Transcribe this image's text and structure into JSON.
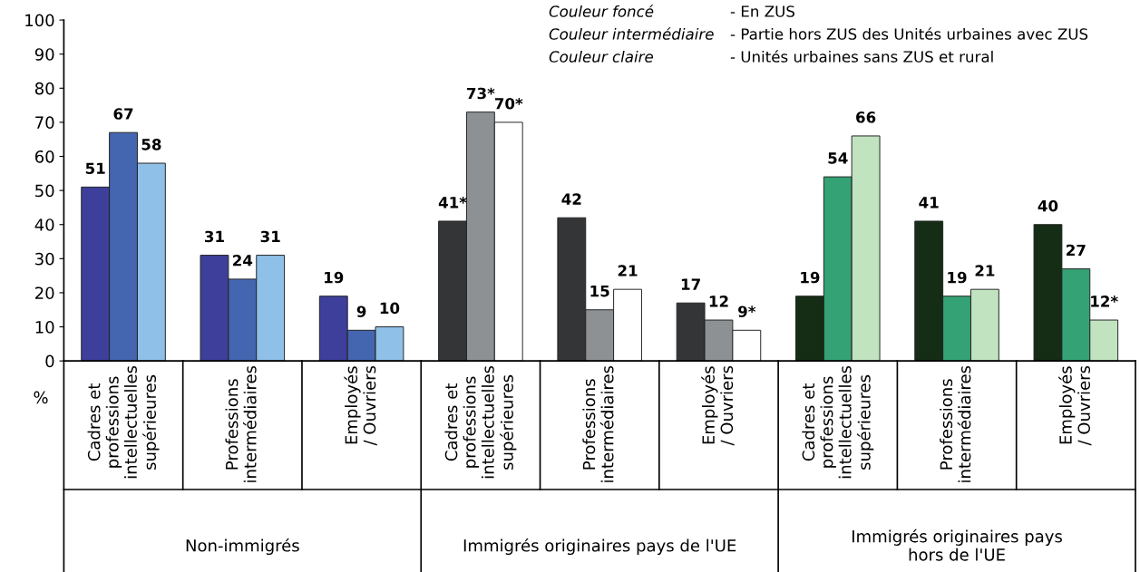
{
  "chart_data": {
    "type": "bar",
    "categories": [
      "Cadres et\nprofessions\nintellectuelles\nsupérieures",
      "Professions\nintermédiaires",
      "Employés\n/ Ouvriers",
      "Cadres et\nprofessions\nintellectuelles\nsupérieures",
      "Professions\nintermédiaires",
      "Employés\n/ Ouvriers",
      "Cadres et\nprofessions\nintellectuelles\nsupérieures",
      "Professions\nintermédiaires",
      "Employés\n/ Ouvriers"
    ],
    "series": [
      {
        "colors": [
          "#3d3f9a",
          "#3d3f9a",
          "#3d3f9a",
          "#333537",
          "#333537",
          "#333537",
          "#142d14",
          "#142d14",
          "#142d14"
        ],
        "values": [
          51,
          31,
          19,
          41,
          42,
          17,
          19,
          41,
          40
        ],
        "value_labels": [
          "51",
          "31",
          "19",
          "41*",
          "42",
          "17",
          "19",
          "41",
          "40"
        ]
      },
      {
        "colors": [
          "#4466b0",
          "#4466b0",
          "#4466b0",
          "#8e9194",
          "#8e9194",
          "#8e9194",
          "#35a275",
          "#35a275",
          "#35a275"
        ],
        "values": [
          67,
          24,
          9,
          73,
          15,
          12,
          54,
          19,
          27
        ],
        "value_labels": [
          "67",
          "24",
          "9",
          "73*",
          "15",
          "12",
          "54",
          "19",
          "27"
        ]
      },
      {
        "colors": [
          "#8fc0e8",
          "#8fc0e8",
          "#8fc0e8",
          "#ffffff",
          "#ffffff",
          "#ffffff",
          "#c1e3c0",
          "#c1e3c0",
          "#c1e3c0"
        ],
        "values": [
          58,
          31,
          10,
          70,
          21,
          9,
          66,
          21,
          12
        ],
        "value_labels": [
          "58",
          "31",
          "10",
          "70*",
          "21",
          "9*",
          "66",
          "21",
          "12*"
        ]
      }
    ],
    "ylabel": "%",
    "ylim": [
      0,
      100
    ],
    "yticks": [
      0,
      10,
      20,
      30,
      40,
      50,
      60,
      70,
      80,
      90,
      100
    ],
    "grid": false,
    "legend": false,
    "annotations": [
      "Non-immigrés",
      "Immigrés originaires pays de l'UE",
      "Immigrés originaires pays\nhors de l'UE",
      "Couleur foncé",
      "- En ZUS",
      "Couleur intermédiaire",
      "- Partie hors ZUS des Unités urbaines avec ZUS",
      "Couleur claire",
      "- Unités urbaines sans ZUS et rural"
    ]
  }
}
